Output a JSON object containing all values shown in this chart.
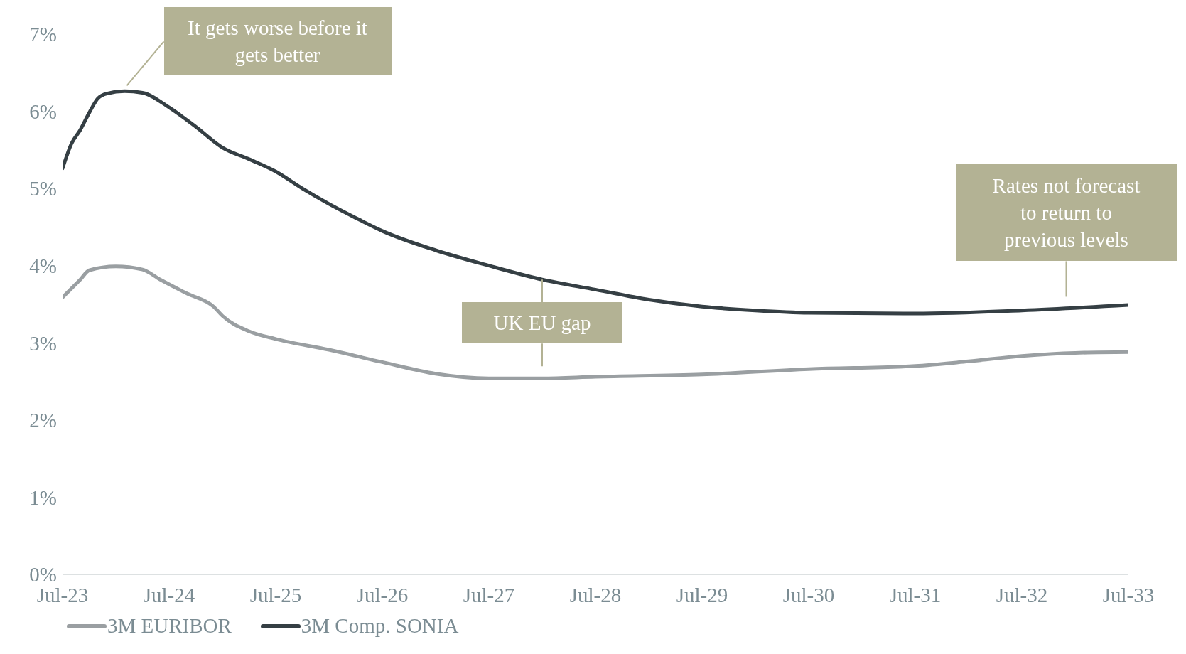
{
  "chart_data": {
    "type": "line",
    "annotations": [
      {
        "text": "It gets worse before it gets better",
        "x": "2024-02",
        "y": 6.26
      },
      {
        "text": "UK EU gap",
        "x": "2028-01",
        "y": 3.82
      },
      {
        "text": "Rates not forecast to return to previous levels",
        "x": "2032-12",
        "y": 3.45
      }
    ],
    "series": [
      {
        "name": "3M EURIBOR",
        "color": "#9a9fa2",
        "x": [
          "2023-07",
          "2023-09",
          "2023-10",
          "2024-01",
          "2024-04",
          "2024-06",
          "2024-09",
          "2024-12",
          "2025-01",
          "2025-04",
          "2025-07",
          "2026-01",
          "2026-07",
          "2027-01",
          "2027-07",
          "2028-01",
          "2028-07",
          "2029-07",
          "2030-07",
          "2031-07",
          "2032-01",
          "2032-07",
          "2033-01",
          "2033-07"
        ],
        "values": [
          3.59,
          3.82,
          3.94,
          3.99,
          3.95,
          3.82,
          3.64,
          3.47,
          3.35,
          3.15,
          3.05,
          2.91,
          2.75,
          2.6,
          2.54,
          2.54,
          2.56,
          2.59,
          2.66,
          2.7,
          2.76,
          2.83,
          2.87,
          2.88
        ]
      },
      {
        "name": "3M Comp. SONIA",
        "color": "#353f44",
        "x": [
          "2023-07",
          "2023-08",
          "2023-09",
          "2023-10",
          "2023-11",
          "2023-12",
          "2024-02",
          "2024-04",
          "2024-07",
          "2024-10",
          "2025-01",
          "2025-04",
          "2025-07",
          "2025-10",
          "2026-01",
          "2026-04",
          "2026-07",
          "2027-01",
          "2027-07",
          "2028-01",
          "2028-07",
          "2029-01",
          "2029-07",
          "2030-01",
          "2030-07",
          "2031-07",
          "2032-07",
          "2033-07"
        ],
        "values": [
          5.26,
          5.58,
          5.76,
          5.98,
          6.17,
          6.23,
          6.26,
          6.24,
          6.05,
          5.8,
          5.53,
          5.38,
          5.22,
          5.0,
          4.8,
          4.62,
          4.45,
          4.2,
          4.0,
          3.82,
          3.69,
          3.56,
          3.47,
          3.42,
          3.39,
          3.38,
          3.42,
          3.49
        ]
      }
    ],
    "xlim": [
      "2023-07",
      "2033-07"
    ],
    "xticks": [
      {
        "value": "2023-07",
        "label": "Jul-23"
      },
      {
        "value": "2024-07",
        "label": "Jul-24"
      },
      {
        "value": "2025-07",
        "label": "Jul-25"
      },
      {
        "value": "2026-07",
        "label": "Jul-26"
      },
      {
        "value": "2027-07",
        "label": "Jul-27"
      },
      {
        "value": "2028-07",
        "label": "Jul-28"
      },
      {
        "value": "2029-07",
        "label": "Jul-29"
      },
      {
        "value": "2030-07",
        "label": "Jul-30"
      },
      {
        "value": "2031-07",
        "label": "Jul-31"
      },
      {
        "value": "2032-07",
        "label": "Jul-32"
      },
      {
        "value": "2033-07",
        "label": "Jul-33"
      }
    ],
    "ylim": [
      0,
      7
    ],
    "yticks": [
      {
        "value": 0,
        "label": "0%"
      },
      {
        "value": 1,
        "label": "1%"
      },
      {
        "value": 2,
        "label": "2%"
      },
      {
        "value": 3,
        "label": "3%"
      },
      {
        "value": 4,
        "label": "4%"
      },
      {
        "value": 5,
        "label": "5%"
      },
      {
        "value": 6,
        "label": "6%"
      },
      {
        "value": 7,
        "label": "7%"
      }
    ],
    "grid": false,
    "legend": "bottom left",
    "marker": "none",
    "line_style": "solid"
  }
}
